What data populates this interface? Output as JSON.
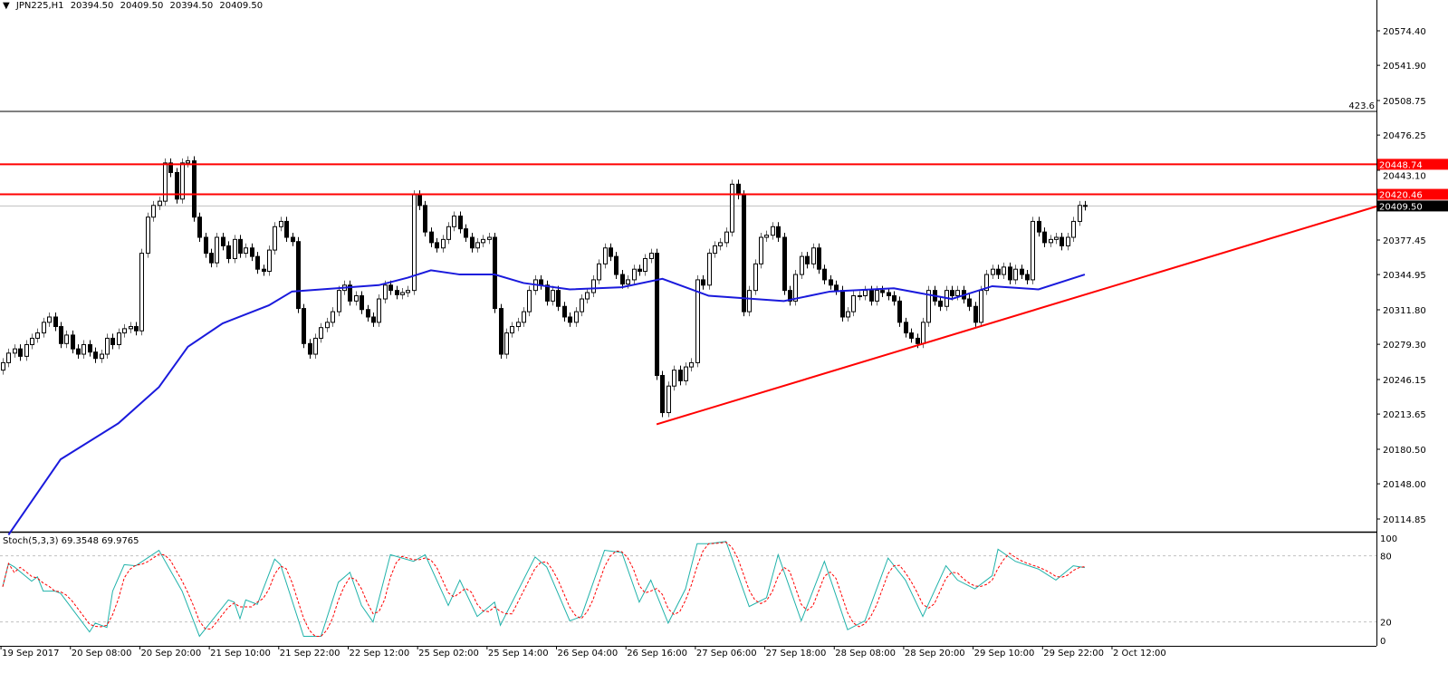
{
  "header": {
    "symbol": "JPN225,H1",
    "open": "20394.50",
    "high": "20409.50",
    "low": "20394.50",
    "close": "20409.50",
    "menu_icon": "triangle-down-icon"
  },
  "colors": {
    "background": "#ffffff",
    "bull_body": "#ffffff",
    "bear_body": "#000000",
    "candle_outline": "#000000",
    "moving_average": "#1a1adc",
    "support_resistance": "#ff0000",
    "stoch_main": "#20b2aa",
    "stoch_signal": "#ff0000",
    "current_price_box": "#000000",
    "grid_level": "#c0c0c0"
  },
  "chart_data": [
    {
      "type": "candlestick",
      "symbol": "JPN225",
      "timeframe": "H1",
      "price_axis_ticks": [
        "20574.40",
        "20541.90",
        "20508.75",
        "20476.25",
        "20443.10",
        "20377.45",
        "20344.95",
        "20311.80",
        "20279.30",
        "20246.15",
        "20213.65",
        "20180.50",
        "20148.00",
        "20114.85"
      ],
      "time_axis_ticks": [
        "19 Sep 2017",
        "20 Sep 08:00",
        "20 Sep 20:00",
        "21 Sep 10:00",
        "21 Sep 22:00",
        "22 Sep 12:00",
        "25 Sep 02:00",
        "25 Sep 14:00",
        "26 Sep 04:00",
        "26 Sep 16:00",
        "27 Sep 06:00",
        "27 Sep 18:00",
        "28 Sep 08:00",
        "28 Sep 20:00",
        "29 Sep 10:00",
        "29 Sep 22:00",
        "2 Oct 12:00"
      ],
      "ylim": [
        20085,
        20608
      ],
      "first_open": 20255,
      "close": [
        20262,
        20271,
        20275,
        20268,
        20279,
        20285,
        20290,
        20300,
        20305,
        20296,
        20280,
        20288,
        20275,
        20270,
        20279,
        20272,
        20266,
        20270,
        20285,
        20279,
        20290,
        20294,
        20296,
        20292,
        20365,
        20399,
        20410,
        20414,
        20450,
        20441,
        20416,
        20450,
        20452,
        20399,
        20380,
        20365,
        20356,
        20380,
        20372,
        20360,
        20378,
        20365,
        20370,
        20362,
        20350,
        20348,
        20368,
        20390,
        20395,
        20380,
        20376,
        20313,
        20280,
        20270,
        20285,
        20295,
        20300,
        20310,
        20330,
        20335,
        20320,
        20325,
        20312,
        20305,
        20300,
        20322,
        20335,
        20330,
        20326,
        20328,
        20330,
        20420,
        20410,
        20385,
        20375,
        20370,
        20378,
        20390,
        20400,
        20388,
        20380,
        20370,
        20375,
        20378,
        20380,
        20313,
        20270,
        20290,
        20296,
        20300,
        20310,
        20330,
        20340,
        20335,
        20320,
        20330,
        20315,
        20305,
        20300,
        20310,
        20322,
        20328,
        20340,
        20355,
        20370,
        20362,
        20345,
        20336,
        20340,
        20350,
        20348,
        20360,
        20365,
        20250,
        20215,
        20240,
        20255,
        20245,
        20258,
        20262,
        20340,
        20335,
        20365,
        20372,
        20375,
        20385,
        20430,
        20420,
        20310,
        20330,
        20355,
        20380,
        20382,
        20390,
        20380,
        20330,
        20320,
        20345,
        20362,
        20355,
        20370,
        20350,
        20340,
        20335,
        20330,
        20305,
        20310,
        20325,
        20325,
        20330,
        20320,
        20330,
        20328,
        20325,
        20320,
        20300,
        20290,
        20285,
        20280,
        20300,
        20330,
        20320,
        20315,
        20330,
        20325,
        20330,
        20322,
        20315,
        20300,
        20330,
        20345,
        20350,
        20345,
        20352,
        20340,
        20350,
        20345,
        20340,
        20395,
        20385,
        20375,
        20378,
        20380,
        20372,
        20380,
        20395,
        20410,
        20409.5
      ],
      "moving_average": [
        [
          1,
          20100
        ],
        [
          10,
          20171
        ],
        [
          20,
          20205
        ],
        [
          27,
          20239
        ],
        [
          32,
          20277
        ],
        [
          38,
          20299
        ],
        [
          46,
          20316
        ],
        [
          50,
          20329
        ],
        [
          65,
          20335
        ],
        [
          70,
          20342
        ],
        [
          74,
          20349
        ],
        [
          79,
          20345
        ],
        [
          85,
          20345
        ],
        [
          90,
          20337
        ],
        [
          98,
          20331
        ],
        [
          107,
          20333
        ],
        [
          114,
          20341
        ],
        [
          122,
          20325
        ],
        [
          135,
          20320
        ],
        [
          143,
          20329
        ],
        [
          154,
          20332
        ],
        [
          164,
          20322
        ],
        [
          171,
          20334
        ],
        [
          179,
          20331
        ],
        [
          187,
          20345
        ]
      ],
      "horizontal_levels": [
        {
          "price": 20448.74,
          "label": "20448.74",
          "color": "#ff0000"
        },
        {
          "price": 20420.46,
          "label": "20420.46",
          "color": "#ff0000"
        }
      ],
      "fib_level": {
        "price": 20498.5,
        "label": "423.6"
      },
      "current_price": {
        "price": 20409.5,
        "label": "20409.50"
      },
      "trendline": {
        "start": [
          113,
          20204
        ],
        "through": [
          187,
          20326
        ],
        "extends_right": true
      }
    },
    {
      "type": "line",
      "indicator": "Stoch(5,3,3)",
      "label": "Stoch(5,3,3) 69.3548 69.9765",
      "ylim": [
        0,
        100
      ],
      "y_ticks": [
        "100",
        "80",
        "20",
        "0"
      ],
      "levels": [
        80,
        20
      ],
      "k_points": [
        [
          0,
          52
        ],
        [
          1,
          73
        ],
        [
          2,
          70
        ],
        [
          5,
          57
        ],
        [
          6,
          61
        ],
        [
          7,
          48
        ],
        [
          9,
          48
        ],
        [
          10,
          46
        ],
        [
          15,
          11
        ],
        [
          16,
          19
        ],
        [
          18,
          15
        ],
        [
          19,
          48
        ],
        [
          21,
          72
        ],
        [
          23,
          71
        ],
        [
          27,
          85
        ],
        [
          31,
          48
        ],
        [
          34,
          7
        ],
        [
          39,
          40
        ],
        [
          40,
          38
        ],
        [
          41,
          23
        ],
        [
          42,
          40
        ],
        [
          44,
          36
        ],
        [
          47,
          77
        ],
        [
          48,
          72
        ],
        [
          52,
          7
        ],
        [
          55,
          7
        ],
        [
          58,
          56
        ],
        [
          60,
          65
        ],
        [
          62,
          35
        ],
        [
          64,
          20
        ],
        [
          67,
          81
        ],
        [
          71,
          75
        ],
        [
          73,
          81
        ],
        [
          77,
          35
        ],
        [
          79,
          58
        ],
        [
          82,
          25
        ],
        [
          85,
          38
        ],
        [
          86,
          17
        ],
        [
          92,
          79
        ],
        [
          94,
          70
        ],
        [
          98,
          21
        ],
        [
          100,
          25
        ],
        [
          104,
          85
        ],
        [
          107,
          83
        ],
        [
          110,
          38
        ],
        [
          112,
          58
        ],
        [
          115,
          19
        ],
        [
          118,
          50
        ],
        [
          120,
          91
        ],
        [
          122,
          91
        ],
        [
          125,
          93
        ],
        [
          129,
          34
        ],
        [
          132,
          42
        ],
        [
          134,
          81
        ],
        [
          138,
          21
        ],
        [
          142,
          75
        ],
        [
          146,
          13
        ],
        [
          149,
          21
        ],
        [
          153,
          78
        ],
        [
          156,
          58
        ],
        [
          159,
          25
        ],
        [
          163,
          71
        ],
        [
          165,
          58
        ],
        [
          168,
          50
        ],
        [
          171,
          62
        ],
        [
          172,
          86
        ],
        [
          175,
          75
        ],
        [
          179,
          68
        ],
        [
          182,
          58
        ],
        [
          185,
          71
        ],
        [
          187,
          69.35
        ]
      ],
      "last_main": 69.3548,
      "last_signal": 69.9765
    }
  ]
}
